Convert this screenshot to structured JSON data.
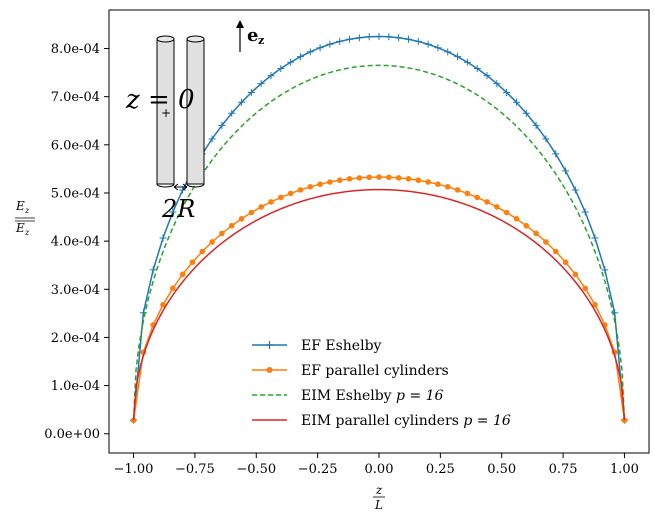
{
  "chart_data": {
    "type": "line",
    "xlabel": {
      "num": "z",
      "den": "L"
    },
    "ylabel": {
      "num": "E",
      "num_sub": "z",
      "den": "E",
      "den_sub": "z"
    },
    "xlim": [
      -1.1,
      1.1
    ],
    "ylim": [
      -4e-05,
      0.00088
    ],
    "xticks": [
      -1.0,
      -0.75,
      -0.5,
      -0.25,
      0.0,
      0.25,
      0.5,
      0.75,
      1.0
    ],
    "xtick_labels": [
      "−1.00",
      "−0.75",
      "−0.50",
      "−0.25",
      "0.00",
      "0.25",
      "0.50",
      "0.75",
      "1.00"
    ],
    "yticks": [
      0,
      0.0001,
      0.0002,
      0.0003,
      0.0004,
      0.0005,
      0.0006,
      0.0007,
      0.0008
    ],
    "ytick_labels": [
      "0.0e+00",
      "1.0e-04",
      "2.0e-04",
      "3.0e-04",
      "4.0e-04",
      "5.0e-04",
      "6.0e-04",
      "7.0e-04",
      "8.0e-04"
    ],
    "grid": false,
    "legend_position": "lower-center",
    "series": [
      {
        "name": "EF Eshelby",
        "color": "#1f77b4",
        "style": "solid",
        "marker": "plus",
        "peak": 0.000825,
        "end": 2.8e-05,
        "n_points": 51
      },
      {
        "name": "EF parallel cylinders",
        "color": "#ff7f0e",
        "style": "solid",
        "marker": "circle",
        "peak": 0.000533,
        "end": 2.8e-05,
        "n_points": 51
      },
      {
        "name": "EIM Eshelby p = 16",
        "color": "#2ca02c",
        "style": "dashed",
        "marker": "none",
        "peak": 0.000765,
        "end": 2.8e-05,
        "n_points": 201
      },
      {
        "name": "EIM parallel cylinders p = 16",
        "color": "#d62728",
        "style": "solid",
        "marker": "none",
        "peak": 0.000507,
        "end": 2.8e-05,
        "n_points": 201
      }
    ]
  },
  "legend": [
    {
      "text": "EF Eshelby",
      "math": ""
    },
    {
      "text": "EF parallel cylinders",
      "math": ""
    },
    {
      "text": "EIM Eshelby ",
      "math": "p = 16"
    },
    {
      "text": "EIM parallel cylinders ",
      "math": "p = 16"
    }
  ],
  "inset": {
    "z_label": "z = 0",
    "r_label": "2R",
    "axis_vector": "e",
    "axis_vector_sub": "z"
  }
}
